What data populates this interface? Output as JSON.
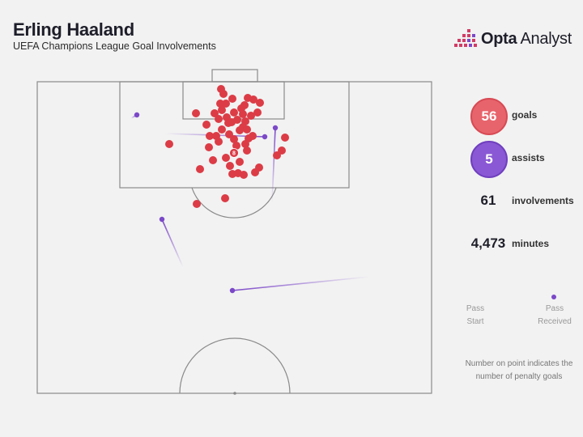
{
  "header": {
    "title": "Erling Haaland",
    "subtitle": "UEFA Champions League Goal Involvements"
  },
  "brand": {
    "name_bold": "Opta",
    "name_rest": " Analyst"
  },
  "stats": {
    "goals": {
      "value": "56",
      "label": "goals"
    },
    "assists": {
      "value": "5",
      "label": "assists"
    },
    "involvements": {
      "value": "61",
      "label": "involvements"
    },
    "minutes": {
      "value": "4,473",
      "label": "minutes"
    }
  },
  "legend": {
    "start": "Pass Start",
    "received": "Pass Received"
  },
  "note": "Number on point indicates the number of penalty goals",
  "colors": {
    "goal": "#dc3c46",
    "assist": "#7b48c8",
    "pitch_line": "#8a8a8a",
    "background": "#f2f2f2"
  },
  "chart_data": {
    "type": "scatter",
    "series": [
      {
        "name": "goals",
        "points": [
          [
            273,
            110
          ],
          [
            287,
            122
          ],
          [
            306,
            121
          ],
          [
            313,
            123
          ],
          [
            321,
            127
          ],
          [
            272,
            128
          ],
          [
            279,
            128
          ],
          [
            302,
            130
          ],
          [
            274,
            136
          ],
          [
            242,
            140
          ],
          [
            289,
            139
          ],
          [
            300,
            141
          ],
          [
            310,
            143
          ],
          [
            318,
            139
          ],
          [
            270,
            147
          ],
          [
            280,
            145
          ],
          [
            282,
            152
          ],
          [
            286,
            151
          ],
          [
            293,
            148
          ],
          [
            255,
            154
          ],
          [
            274,
            160
          ],
          [
            300,
            157
          ],
          [
            305,
            160
          ],
          [
            296,
            161
          ],
          [
            259,
            168
          ],
          [
            267,
            168
          ],
          [
            283,
            166
          ],
          [
            289,
            172
          ],
          [
            307,
            171
          ],
          [
            303,
            178
          ],
          [
            352,
            170
          ],
          [
            209,
            178
          ],
          [
            348,
            186
          ],
          [
            342,
            192
          ],
          [
            305,
            186
          ],
          [
            279,
            195
          ],
          [
            263,
            198
          ],
          [
            247,
            209
          ],
          [
            287,
            215
          ],
          [
            294,
            214
          ],
          [
            301,
            216
          ],
          [
            320,
            207
          ],
          [
            315,
            213
          ],
          [
            278,
            245
          ],
          [
            243,
            252
          ],
          [
            276,
            116
          ],
          [
            298,
            134
          ],
          [
            270,
            175
          ],
          [
            292,
            180
          ],
          [
            312,
            168
          ],
          [
            296,
            200
          ],
          [
            258,
            182
          ],
          [
            265,
            140
          ],
          [
            303,
            150
          ],
          [
            284,
            205
          ]
        ],
        "penalty": {
          "point": [
            289,
            189
          ],
          "count": "8"
        }
      },
      {
        "name": "assists",
        "passes": [
          {
            "start": [
              162,
              146
            ],
            "received": [
              169,
              142
            ]
          },
          {
            "start": [
              204,
              165
            ],
            "received": [
              327,
              169
            ]
          },
          {
            "start": [
              336,
              250
            ],
            "received": [
              340,
              158
            ]
          },
          {
            "start": [
              226,
              330
            ],
            "received": [
              200,
              271
            ]
          },
          {
            "start": [
              456,
              342
            ],
            "received": [
              287,
              359
            ]
          }
        ]
      }
    ]
  }
}
